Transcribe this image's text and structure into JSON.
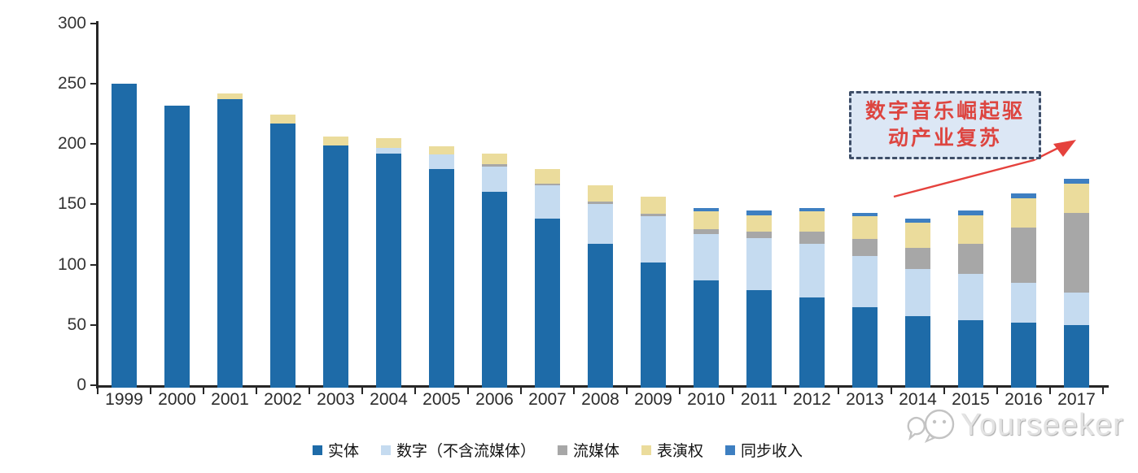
{
  "chart_data": {
    "type": "bar",
    "stacked": true,
    "title": "",
    "xlabel": "",
    "ylabel": "",
    "ylim": [
      0,
      300
    ],
    "y_ticks": [
      0,
      50,
      100,
      150,
      200,
      250,
      300
    ],
    "grid": false,
    "legend_position": "bottom",
    "categories": [
      "1999",
      "2000",
      "2001",
      "2002",
      "2003",
      "2004",
      "2005",
      "2006",
      "2007",
      "2008",
      "2009",
      "2010",
      "2011",
      "2012",
      "2013",
      "2014",
      "2015",
      "2016",
      "2017"
    ],
    "series": [
      {
        "name": "实体",
        "color": "#1E6BA8",
        "values": [
          252,
          234,
          239,
          219,
          201,
          194,
          181,
          162,
          140,
          119,
          104,
          89,
          81,
          75,
          67,
          59,
          56,
          54,
          52
        ]
      },
      {
        "name": "数字（不含流媒体）",
        "color": "#C5DBF0",
        "values": [
          0,
          0,
          0,
          0,
          0,
          5,
          12,
          21,
          28,
          33,
          38,
          38,
          43,
          44,
          42,
          39,
          38,
          33,
          27
        ]
      },
      {
        "name": "流媒体",
        "color": "#A7A7A7",
        "values": [
          0,
          0,
          0,
          0,
          0,
          0,
          0,
          2,
          1,
          2,
          2,
          4,
          5,
          10,
          14,
          18,
          25,
          46,
          66
        ]
      },
      {
        "name": "表演权",
        "color": "#EBDC9C",
        "values": [
          0,
          0,
          5,
          7,
          7,
          8,
          7,
          9,
          12,
          14,
          14,
          15,
          14,
          17,
          19,
          21,
          24,
          24,
          24
        ]
      },
      {
        "name": "同步收入",
        "color": "#3E7FC1",
        "values": [
          0,
          0,
          0,
          0,
          0,
          0,
          0,
          0,
          0,
          0,
          0,
          3,
          4,
          3,
          3,
          3,
          4,
          4,
          4
        ]
      }
    ]
  },
  "annotation": {
    "line1": "数字音乐崛起驱",
    "line2": "动产业复苏",
    "text_color": "#DD4540",
    "border_color": "#3E4E68",
    "fill_color": "#DCE7F5",
    "arrow_color": "#E5423D"
  },
  "watermark": {
    "text": "Yourseeker"
  }
}
